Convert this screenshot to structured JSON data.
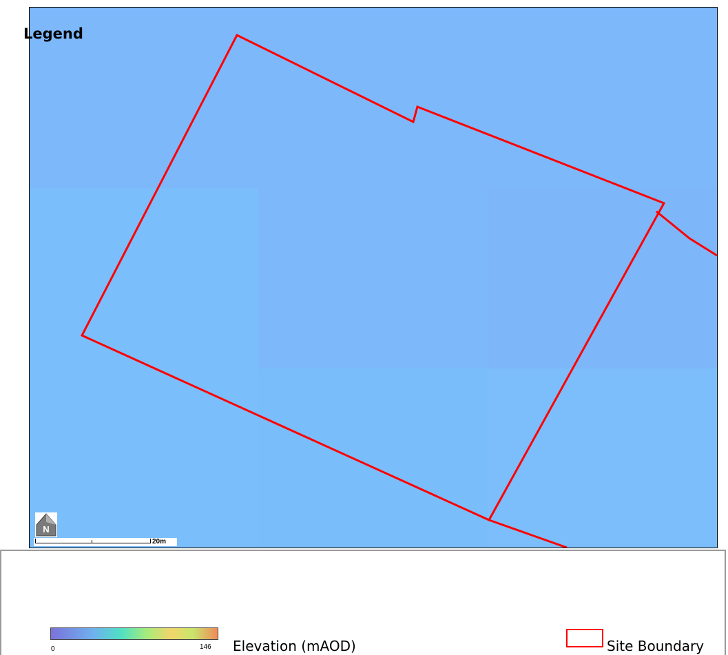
{
  "map": {
    "tile_colors": {
      "top": "#7db8fb",
      "mid_left": "#7abefb",
      "mid_center": "#7db8fa",
      "mid_right": "#7db6f9",
      "bottom_left": "#7abefb",
      "bottom_center": "#7abdfb",
      "bottom_right": "#7bbefb"
    },
    "boundary_color": "#ff0000",
    "scale_bar_label": "20m",
    "north_arrow_letter": "N"
  },
  "legend": {
    "title": "Legend",
    "elevation": {
      "min_label": "0",
      "max_label": "146",
      "label": "Elevation (mAOD)"
    },
    "site_boundary": {
      "label": "Site Boundary",
      "color": "#ff0000"
    }
  }
}
